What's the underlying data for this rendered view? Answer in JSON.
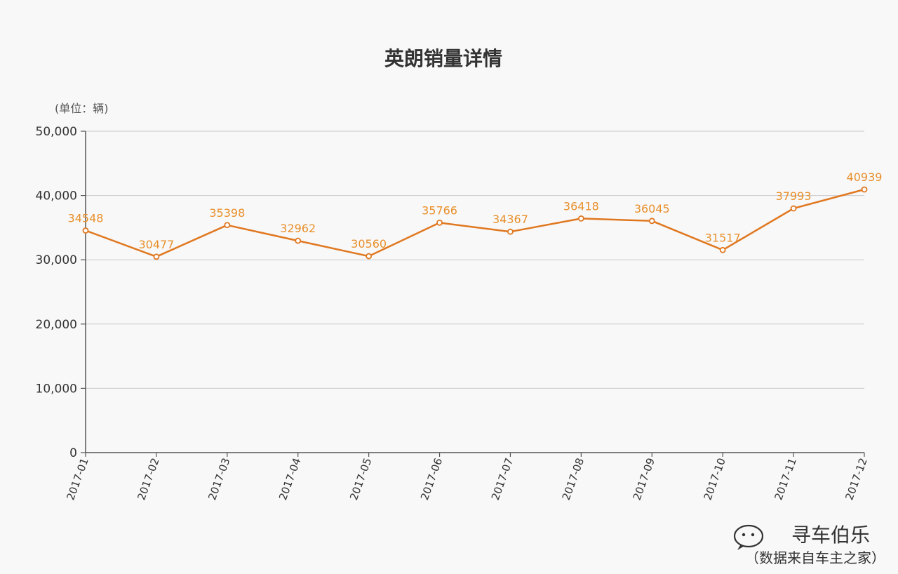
{
  "chart_data": {
    "type": "line",
    "title": "英朗销量详情",
    "unit_label": "(单位：辆)",
    "x": [
      "2017-01",
      "2017-02",
      "2017-03",
      "2017-04",
      "2017-05",
      "2017-06",
      "2017-07",
      "2017-08",
      "2017-09",
      "2017-10",
      "2017-11",
      "2017-12"
    ],
    "series": [
      {
        "values": [
          34548,
          30477,
          35398,
          32962,
          30560,
          35766,
          34367,
          36418,
          36045,
          31517,
          37993,
          40939
        ]
      }
    ],
    "y_ticks": [
      "0",
      "10,000",
      "20,000",
      "30,000",
      "40,000",
      "50,000"
    ],
    "ylim": [
      0,
      50000
    ],
    "grid": true,
    "line_color": "#e07820",
    "label_color": "#e8902a"
  },
  "watermark": {
    "brand": "寻车伯乐",
    "source": "（数据来自车主之家）"
  }
}
